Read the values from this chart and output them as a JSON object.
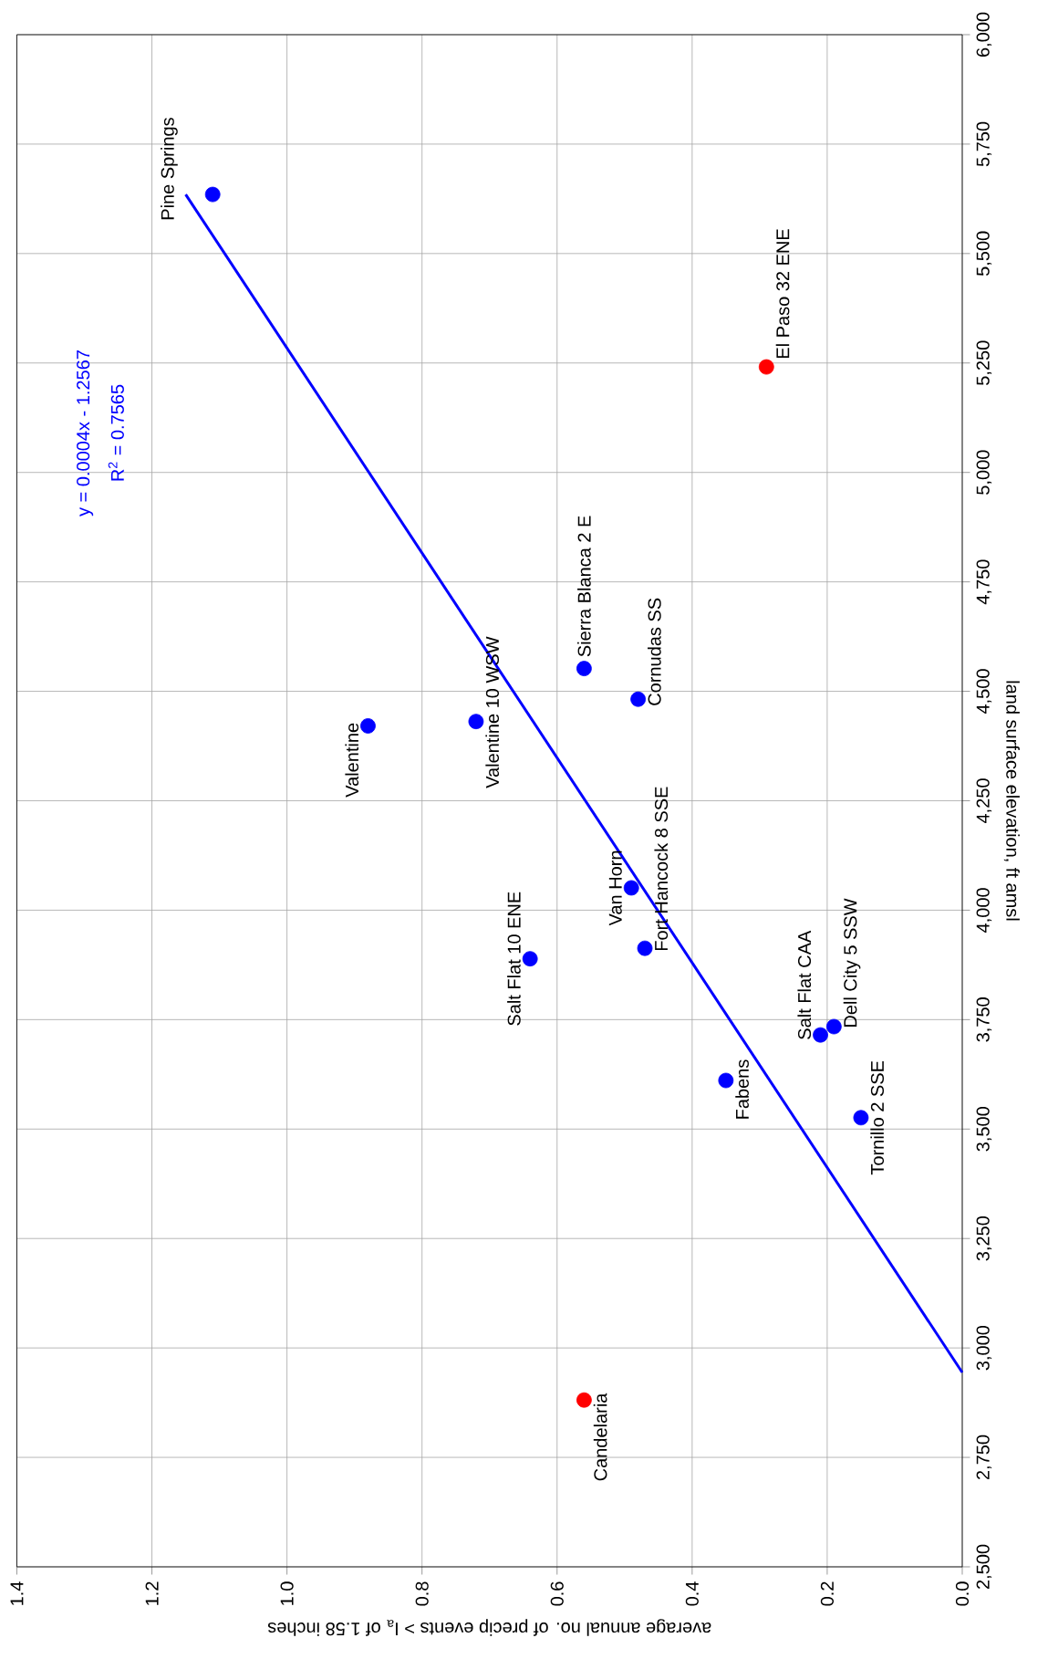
{
  "chart_data": {
    "type": "scatter",
    "xlabel": "average annual no. of precip events > I$_{a}$ of 1.58 inches",
    "ylabel": "land surface elevation, ft amsl",
    "xlim": [
      1.4,
      0
    ],
    "xticks": [
      {
        "value": 1.4,
        "label": "1.4"
      },
      {
        "value": 1.2,
        "label": "1.2"
      },
      {
        "value": 1.0,
        "label": "1.0"
      },
      {
        "value": 0.8,
        "label": "0.8"
      },
      {
        "value": 0.6,
        "label": "0.6"
      },
      {
        "value": 0.4,
        "label": "0.4"
      },
      {
        "value": 0.2,
        "label": "0.2"
      },
      {
        "value": 0,
        "label": "0.0"
      }
    ],
    "ylim": [
      2500,
      6000
    ],
    "yticks": [
      {
        "value": 2500,
        "label": "2,500"
      },
      {
        "value": 2750,
        "label": "2,750"
      },
      {
        "value": 3000,
        "label": "3,000"
      },
      {
        "value": 3250,
        "label": "3,250"
      },
      {
        "value": 3500,
        "label": "3,500"
      },
      {
        "value": 3750,
        "label": "3,750"
      },
      {
        "value": 4000,
        "label": "4,000"
      },
      {
        "value": 4250,
        "label": "4,250"
      },
      {
        "value": 4500,
        "label": "4,500"
      },
      {
        "value": 4750,
        "label": "4,750"
      },
      {
        "value": 5000,
        "label": "5,000"
      },
      {
        "value": 5250,
        "label": "5,250"
      },
      {
        "value": 5500,
        "label": "5,500"
      },
      {
        "value": 5750,
        "label": "5,750"
      },
      {
        "value": 6000,
        "label": "6,000"
      }
    ],
    "grid": true,
    "series": [
      {
        "x": [
          1.11,
          0.29,
          0.56,
          0.48,
          0.88,
          0.72,
          0.49,
          0.47,
          0.64,
          0.19,
          0.21,
          0.35,
          0.15,
          0.56
        ],
        "values": [
          5635,
          5241,
          4552,
          4482,
          4421,
          4431,
          4051,
          3913,
          3889,
          3734,
          3715,
          3611,
          3526,
          2881
        ],
        "colors": [
          "#0000ff",
          "#ff0000",
          "#0000ff",
          "#0000ff",
          "#0000ff",
          "#0000ff",
          "#0000ff",
          "#0000ff",
          "#0000ff",
          "#0000ff",
          "#0000ff",
          "#0000ff",
          "#0000ff",
          "#ff0000"
        ],
        "marker": "circle"
      },
      {
        "type": "line",
        "x": [
          1.15,
          0
        ],
        "values": [
          5635,
          2944
        ],
        "color": "#0000ff",
        "marker": "none"
      }
    ],
    "annotations": [
      {
        "text": "Pine Springs",
        "x": 1.11,
        "y": 5635
      },
      {
        "text": "El Paso 32 ENE",
        "x": 0.29,
        "y": 5241
      },
      {
        "text": "Sierra Blanca 2 E",
        "x": 0.56,
        "y": 4552
      },
      {
        "text": "Cornudas SS",
        "x": 0.48,
        "y": 4482
      },
      {
        "text": "Valentine",
        "x": 0.88,
        "y": 4421
      },
      {
        "text": "Valentine 10 WSW",
        "x": 0.72,
        "y": 4431
      },
      {
        "text": "Van Horn",
        "x": 0.49,
        "y": 4051
      },
      {
        "text": "Fort Hancock 8 SSE",
        "x": 0.47,
        "y": 3913
      },
      {
        "text": "Salt Flat 10 ENE",
        "x": 0.64,
        "y": 3889
      },
      {
        "text": "Dell City 5 SSW",
        "x": 0.19,
        "y": 3734
      },
      {
        "text": "Salt Flat CAA",
        "x": 0.21,
        "y": 3715
      },
      {
        "text": "Fabens",
        "x": 0.35,
        "y": 3611
      },
      {
        "text": "Tornillo 2 SSE",
        "x": 0.15,
        "y": 3526
      },
      {
        "text": "Candelaria",
        "x": 0.56,
        "y": 2881
      },
      "y = 0.0004x - 1.2567",
      "R$^{2}$ = 0.7565"
    ]
  }
}
